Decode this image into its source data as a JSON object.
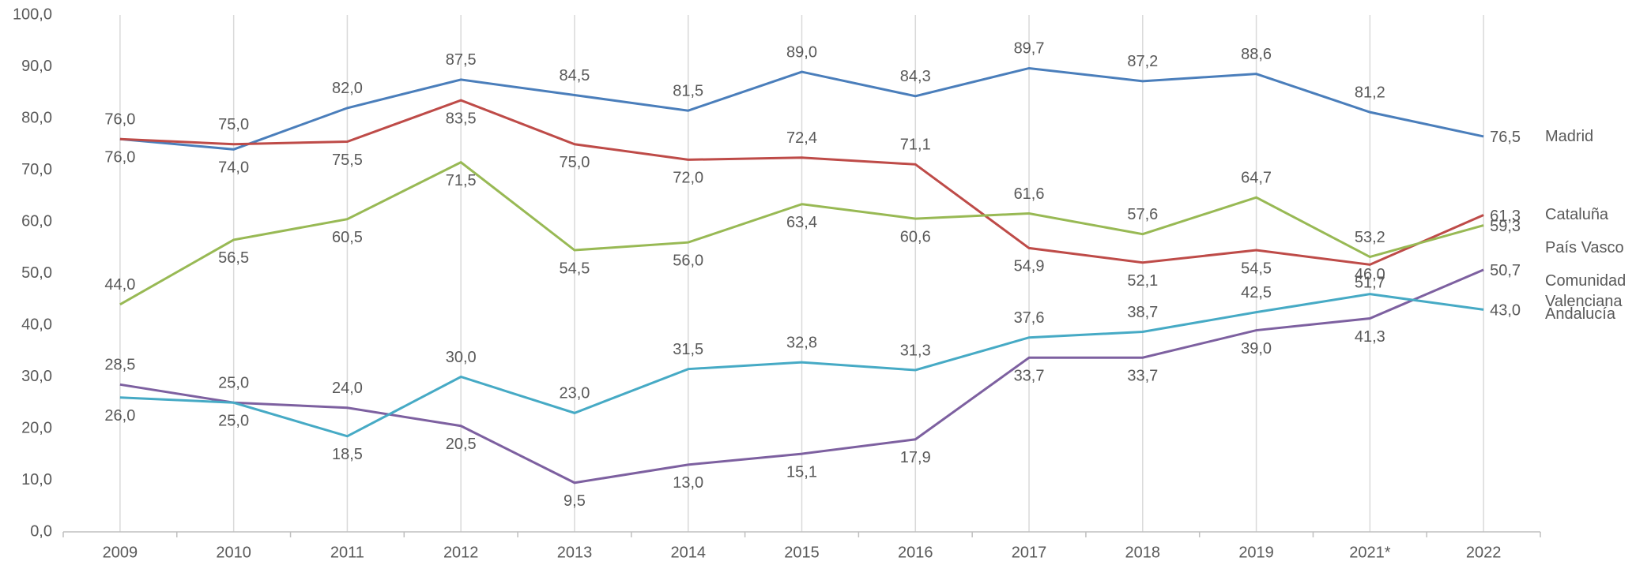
{
  "chart_data": {
    "type": "line",
    "categories": [
      "2009",
      "2010",
      "2011",
      "2012",
      "2013",
      "2014",
      "2015",
      "2016",
      "2017",
      "2018",
      "2019",
      "2021*",
      "2022"
    ],
    "ylim": [
      0,
      100
    ],
    "yticks": [
      {
        "value": 0,
        "label": "0,0"
      },
      {
        "value": 10,
        "label": "10,0"
      },
      {
        "value": 20,
        "label": "20,0"
      },
      {
        "value": 30,
        "label": "30,0"
      },
      {
        "value": 40,
        "label": "40,0"
      },
      {
        "value": 50,
        "label": "50,0"
      },
      {
        "value": 60,
        "label": "60,0"
      },
      {
        "value": 70,
        "label": "70,0"
      },
      {
        "value": 80,
        "label": "80,0"
      },
      {
        "value": 90,
        "label": "90,0"
      },
      {
        "value": 100,
        "label": "100,0"
      }
    ],
    "grid": true,
    "series": [
      {
        "name": "Madrid",
        "color": "#4a7ebb",
        "values": [
          76.0,
          74.0,
          82.0,
          87.5,
          84.5,
          81.5,
          89.0,
          84.3,
          89.7,
          87.2,
          88.6,
          81.2,
          76.5
        ],
        "value_labels": [
          "76,0",
          "74,0",
          "82,0",
          "87,5",
          "84,5",
          "81,5",
          "89,0",
          "84,3",
          "89,7",
          "87,2",
          "88,6",
          "81,2",
          "76,5"
        ]
      },
      {
        "name": "Cataluña",
        "color": "#be4b48",
        "values": [
          76.0,
          75.0,
          75.5,
          83.5,
          75.0,
          72.0,
          72.4,
          71.1,
          54.9,
          52.1,
          54.5,
          51.7,
          61.3
        ],
        "value_labels": [
          "76,0",
          "75,0",
          "75,5",
          "83,5",
          "75,0",
          "72,0",
          "72,4",
          "71,1",
          "54,9",
          "52,1",
          "54,5",
          "51,7",
          "61,3"
        ]
      },
      {
        "name": "País Vasco",
        "color": "#98b954",
        "values": [
          44.0,
          56.5,
          60.5,
          71.5,
          54.5,
          56.0,
          63.4,
          60.6,
          61.6,
          57.6,
          64.7,
          53.2,
          59.3
        ],
        "value_labels": [
          "44,0",
          "56,5",
          "60,5",
          "71,5",
          "54,5",
          "56,0",
          "63,4",
          "60,6",
          "61,6",
          "57,6",
          "64,7",
          "53,2",
          "59,3"
        ]
      },
      {
        "name": "Comunidad Valenciana",
        "color": "#7d60a0",
        "values": [
          28.5,
          25.0,
          24.0,
          20.5,
          9.5,
          13.0,
          15.1,
          17.9,
          33.7,
          33.7,
          39.0,
          41.3,
          50.7
        ],
        "value_labels": [
          "28,5",
          "25,0",
          "24,0",
          "20,5",
          "9,5",
          "13,0",
          "15,1",
          "17,9",
          "33,7",
          "33,7",
          "39,0",
          "41,3",
          "50,7"
        ]
      },
      {
        "name": "Andalucía",
        "color": "#46aac5",
        "values": [
          26.0,
          25.0,
          18.5,
          30.0,
          23.0,
          31.5,
          32.8,
          31.3,
          37.6,
          38.7,
          42.5,
          46.0,
          43.0
        ],
        "value_labels": [
          "26,0",
          "25,0",
          "18,5",
          "30,0",
          "23,0",
          "31,5",
          "32,8",
          "31,3",
          "37,6",
          "38,7",
          "42,5",
          "46,0",
          "43,0"
        ]
      }
    ]
  }
}
